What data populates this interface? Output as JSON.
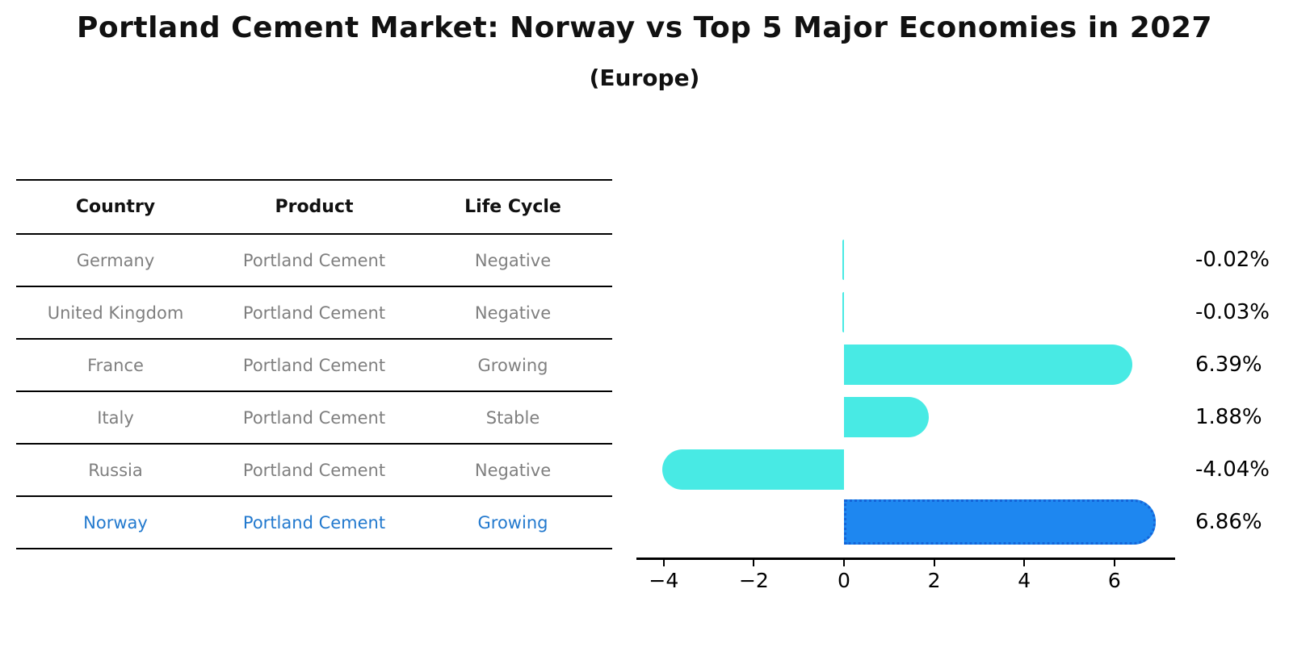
{
  "header": {
    "title": "Portland Cement Market: Norway vs Top 5 Major Economies in 2027",
    "subtitle": "(Europe)"
  },
  "table": {
    "columns": [
      "Country",
      "Product",
      "Life Cycle"
    ],
    "rows": [
      {
        "country": "Germany",
        "product": "Portland Cement",
        "life_cycle": "Negative"
      },
      {
        "country": "United Kingdom",
        "product": "Portland Cement",
        "life_cycle": "Negative"
      },
      {
        "country": "France",
        "product": "Portland Cement",
        "life_cycle": "Growing"
      },
      {
        "country": "Italy",
        "product": "Portland Cement",
        "life_cycle": "Stable"
      },
      {
        "country": "Russia",
        "product": "Portland Cement",
        "life_cycle": "Negative"
      },
      {
        "country": "Norway",
        "product": "Portland Cement",
        "life_cycle": "Growing"
      }
    ]
  },
  "chart_data": {
    "type": "bar",
    "orientation": "horizontal",
    "title": "Portland Cement Market: Norway vs Top 5 Major Economies in 2027 (Europe)",
    "categories": [
      "Germany",
      "United Kingdom",
      "France",
      "Italy",
      "Russia",
      "Norway"
    ],
    "values": [
      -0.02,
      -0.03,
      6.39,
      1.88,
      -4.04,
      6.86
    ],
    "value_labels": [
      "-0.02%",
      "-0.03%",
      "6.39%",
      "1.88%",
      "-4.04%",
      "6.86%"
    ],
    "x_ticks": [
      -4,
      -2,
      0,
      2,
      4,
      6
    ],
    "xlim": [
      -4.6,
      7.35
    ],
    "grid": false,
    "legend": "none",
    "bar_color": "#48eae4",
    "highlight_index": 5,
    "highlight_bar_color": "#1e87f0",
    "highlight_bar_border": "#1464d8"
  },
  "colors": {
    "row_text": "#7f7f7f",
    "highlight_text": "#2279ce",
    "axis": "#000000"
  }
}
